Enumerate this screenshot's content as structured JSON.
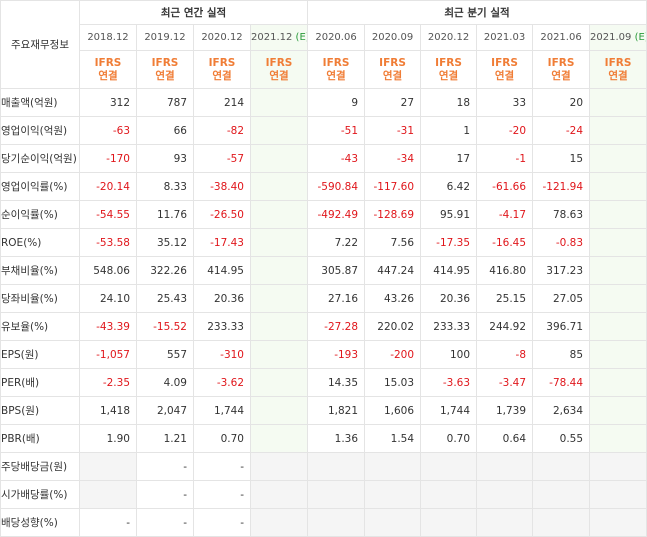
{
  "header": {
    "corner": "주요재무정보",
    "annual_group": "최근 연간 실적",
    "quarter_group": "최근 분기 실적",
    "ifrs_top": "IFRS",
    "ifrs_bottom": "연결"
  },
  "periods": [
    {
      "label": "2018.12",
      "est": false
    },
    {
      "label": "2019.12",
      "est": false
    },
    {
      "label": "2020.12",
      "est": false
    },
    {
      "label": "2021.12",
      "suffix": "(E)",
      "est": true
    },
    {
      "label": "2020.06",
      "est": false
    },
    {
      "label": "2020.09",
      "est": false
    },
    {
      "label": "2020.12",
      "est": false
    },
    {
      "label": "2021.03",
      "est": false
    },
    {
      "label": "2021.06",
      "est": false
    },
    {
      "label": "2021.09",
      "suffix": "(E)",
      "est": true
    }
  ],
  "rows": [
    {
      "label": "매출액(억원)",
      "values": [
        "312",
        "787",
        "214",
        "",
        "9",
        "27",
        "18",
        "33",
        "20",
        ""
      ]
    },
    {
      "label": "영업이익(억원)",
      "values": [
        "-63",
        "66",
        "-82",
        "",
        "-51",
        "-31",
        "1",
        "-20",
        "-24",
        ""
      ]
    },
    {
      "label": "당기순이익(억원)",
      "values": [
        "-170",
        "93",
        "-57",
        "",
        "-43",
        "-34",
        "17",
        "-1",
        "15",
        ""
      ]
    },
    {
      "label": "영업이익률(%)",
      "sep": true,
      "values": [
        "-20.14",
        "8.33",
        "-38.40",
        "",
        "-590.84",
        "-117.60",
        "6.42",
        "-61.66",
        "-121.94",
        ""
      ]
    },
    {
      "label": "순이익률(%)",
      "values": [
        "-54.55",
        "11.76",
        "-26.50",
        "",
        "-492.49",
        "-128.69",
        "95.91",
        "-4.17",
        "78.63",
        ""
      ]
    },
    {
      "label": "ROE(%)",
      "values": [
        "-53.58",
        "35.12",
        "-17.43",
        "",
        "7.22",
        "7.56",
        "-17.35",
        "-16.45",
        "-0.83",
        ""
      ]
    },
    {
      "label": "부채비율(%)",
      "sep": true,
      "values": [
        "548.06",
        "322.26",
        "414.95",
        "",
        "305.87",
        "447.24",
        "414.95",
        "416.80",
        "317.23",
        ""
      ]
    },
    {
      "label": "당좌비율(%)",
      "values": [
        "24.10",
        "25.43",
        "20.36",
        "",
        "27.16",
        "43.26",
        "20.36",
        "25.15",
        "27.05",
        ""
      ]
    },
    {
      "label": "유보율(%)",
      "values": [
        "-43.39",
        "-15.52",
        "233.33",
        "",
        "-27.28",
        "220.02",
        "233.33",
        "244.92",
        "396.71",
        ""
      ]
    },
    {
      "label": "EPS(원)",
      "sep": true,
      "values": [
        "-1,057",
        "557",
        "-310",
        "",
        "-193",
        "-200",
        "100",
        "-8",
        "85",
        ""
      ]
    },
    {
      "label": "PER(배)",
      "values": [
        "-2.35",
        "4.09",
        "-3.62",
        "",
        "14.35",
        "15.03",
        "-3.63",
        "-3.47",
        "-78.44",
        ""
      ]
    },
    {
      "label": "BPS(원)",
      "values": [
        "1,418",
        "2,047",
        "1,744",
        "",
        "1,821",
        "1,606",
        "1,744",
        "1,739",
        "2,634",
        ""
      ]
    },
    {
      "label": "PBR(배)",
      "values": [
        "1.90",
        "1.21",
        "0.70",
        "",
        "1.36",
        "1.54",
        "0.70",
        "0.64",
        "0.55",
        ""
      ]
    },
    {
      "label": "주당배당금(원)",
      "sep": true,
      "values": [
        "",
        "-",
        "-",
        "",
        "",
        "",
        "",
        "",
        "",
        ""
      ],
      "empty": [
        0,
        3,
        4,
        5,
        6,
        7,
        8,
        9
      ]
    },
    {
      "label": "시가배당률(%)",
      "values": [
        "",
        "-",
        "-",
        "",
        "",
        "",
        "",
        "",
        "",
        ""
      ],
      "empty": [
        0,
        3,
        4,
        5,
        6,
        7,
        8,
        9
      ]
    },
    {
      "label": "배당성향(%)",
      "values": [
        "-",
        "-",
        "-",
        "",
        "",
        "",
        "",
        "",
        "",
        ""
      ],
      "empty": [
        3,
        4,
        5,
        6,
        7,
        8,
        9
      ]
    }
  ]
}
